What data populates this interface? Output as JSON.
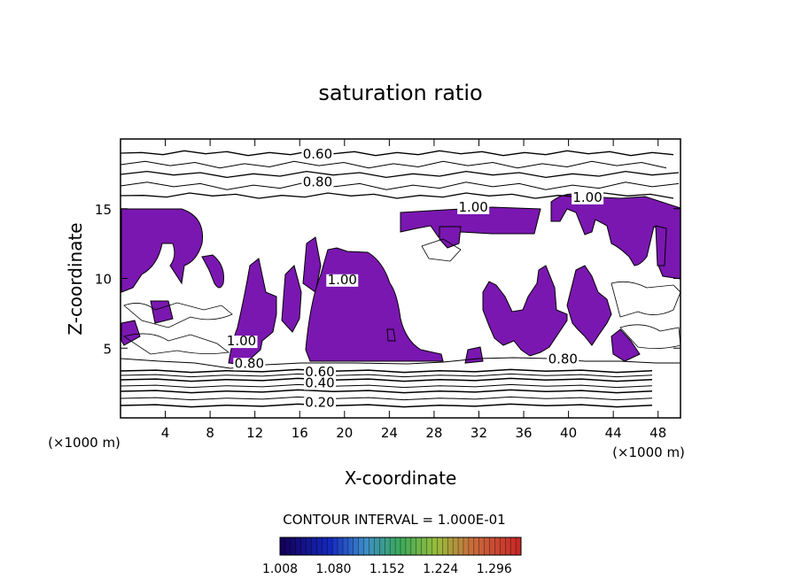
{
  "chart_data": {
    "type": "contour",
    "title": "saturation ratio",
    "xlabel": "X-coordinate",
    "ylabel": "Z-coordinate",
    "x_unit": "(×1000 m)",
    "z_unit": "(×1000 m)",
    "xlim": [
      0,
      50
    ],
    "ylim": [
      0,
      20
    ],
    "x_ticks": [
      4,
      8,
      12,
      16,
      20,
      24,
      28,
      32,
      36,
      40,
      44,
      48
    ],
    "y_ticks": [
      5,
      10,
      15
    ],
    "contour_interval_label": "CONTOUR INTERVAL = 1.000E-01",
    "contour_labels": [
      {
        "text": "0.60",
        "x": 17.6,
        "z": 18.6
      },
      {
        "text": "0.80",
        "x": 17.6,
        "z": 16.6
      },
      {
        "text": "1.00",
        "x": 31.5,
        "z": 14.8
      },
      {
        "text": "1.00",
        "x": 41.7,
        "z": 15.5
      },
      {
        "text": "0.80",
        "x": 11.5,
        "z": 3.6
      },
      {
        "text": "0.80",
        "x": 39.5,
        "z": 3.9
      },
      {
        "text": "0.60",
        "x": 17.8,
        "z": 3.0
      },
      {
        "text": "0.40",
        "x": 17.8,
        "z": 2.2
      },
      {
        "text": "0.20",
        "x": 17.8,
        "z": 0.8
      },
      {
        "text": "1.00",
        "x": 10.8,
        "z": 5.2
      },
      {
        "text": "1.00",
        "x": 19.8,
        "z": 9.6
      }
    ],
    "colorbar": {
      "min": 1.008,
      "max": 1.332,
      "tick_labels": [
        "1.008",
        "1.080",
        "1.152",
        "1.224",
        "1.296"
      ]
    },
    "fill_color": "#7a17b0"
  }
}
